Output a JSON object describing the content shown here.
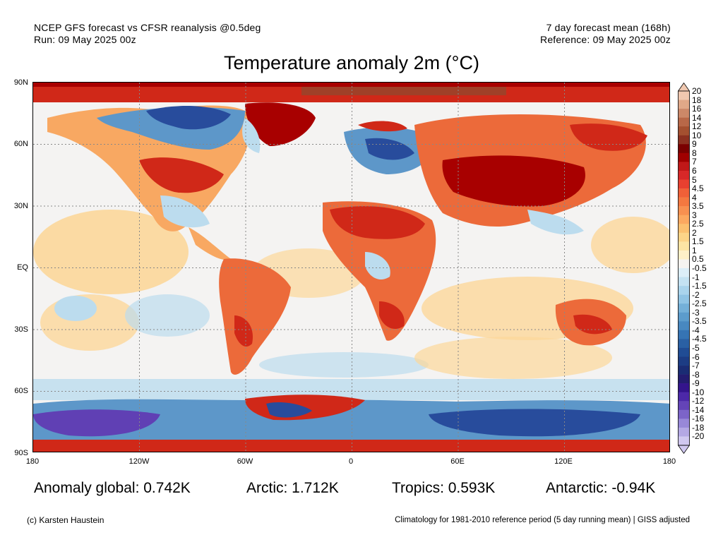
{
  "header": {
    "left_line1": "NCEP GFS forecast vs CFSR reanalysis @0.5deg",
    "left_line2": "Run: 09 May 2025 00z",
    "right_line1": "7 day forecast mean (168h)",
    "right_line2": "Reference: 09 May 2025 00z"
  },
  "title": "Temperature anomaly 2m (°C)",
  "lat_labels": [
    "90N",
    "60N",
    "30N",
    "EQ",
    "30S",
    "60S",
    "90S"
  ],
  "lon_labels": [
    "180",
    "120W",
    "60W",
    "0",
    "60E",
    "120E",
    "180"
  ],
  "stats": {
    "global": "Anomaly global: 0.742K",
    "arctic": "Arctic: 1.712K",
    "tropics": "Tropics: 0.593K",
    "antarctic": "Antarctic: -0.94K"
  },
  "footer": {
    "credit": "(c) Karsten Haustein",
    "note": "Climatology for 1981-2010 reference period (5 day running mean) | GISS adjusted"
  },
  "colorbar": {
    "labels": [
      "20",
      "18",
      "16",
      "14",
      "12",
      "10",
      "9",
      "8",
      "7",
      "6",
      "5",
      "4.5",
      "4",
      "3.5",
      "3",
      "2.5",
      "2",
      "1.5",
      "1",
      "0.5",
      "-0.5",
      "-1",
      "-1.5",
      "-2",
      "-2.5",
      "-3",
      "-3.5",
      "-4",
      "-4.5",
      "-5",
      "-6",
      "-7",
      "-8",
      "-9",
      "-10",
      "-12",
      "-14",
      "-16",
      "-18",
      "-20"
    ],
    "colors": [
      "#f0c8b0",
      "#e0a888",
      "#cc8868",
      "#b86848",
      "#a45030",
      "#8c3020",
      "#7a0000",
      "#a00000",
      "#c01818",
      "#d82828",
      "#e84030",
      "#f06038",
      "#f47840",
      "#f89050",
      "#fca860",
      "#fcc070",
      "#fdd488",
      "#fde4a4",
      "#fef0c8",
      "#f5f3f0",
      "#dceef8",
      "#c4e2f2",
      "#aad4ec",
      "#90c4e4",
      "#74b0d8",
      "#5c9ccc",
      "#4888c0",
      "#3674b4",
      "#2a60a4",
      "#204c94",
      "#1c3c84",
      "#1a2c74",
      "#241c70",
      "#34148c",
      "#4c28a8",
      "#6444b8",
      "#7c64c8",
      "#9888d8",
      "#b4a8e4",
      "#d0c8f0"
    ]
  },
  "map": {
    "colors": {
      "very_hot": "#a80000",
      "hot": "#d02818",
      "warm": "#ec6a3a",
      "mild": "#f8a862",
      "slight": "#fcd79a",
      "neutral": "#f4f3f2",
      "cool": "#bcdcee",
      "cold": "#5d97c9",
      "very_cold": "#284c9c",
      "extreme_cold": "#6040b4"
    }
  }
}
